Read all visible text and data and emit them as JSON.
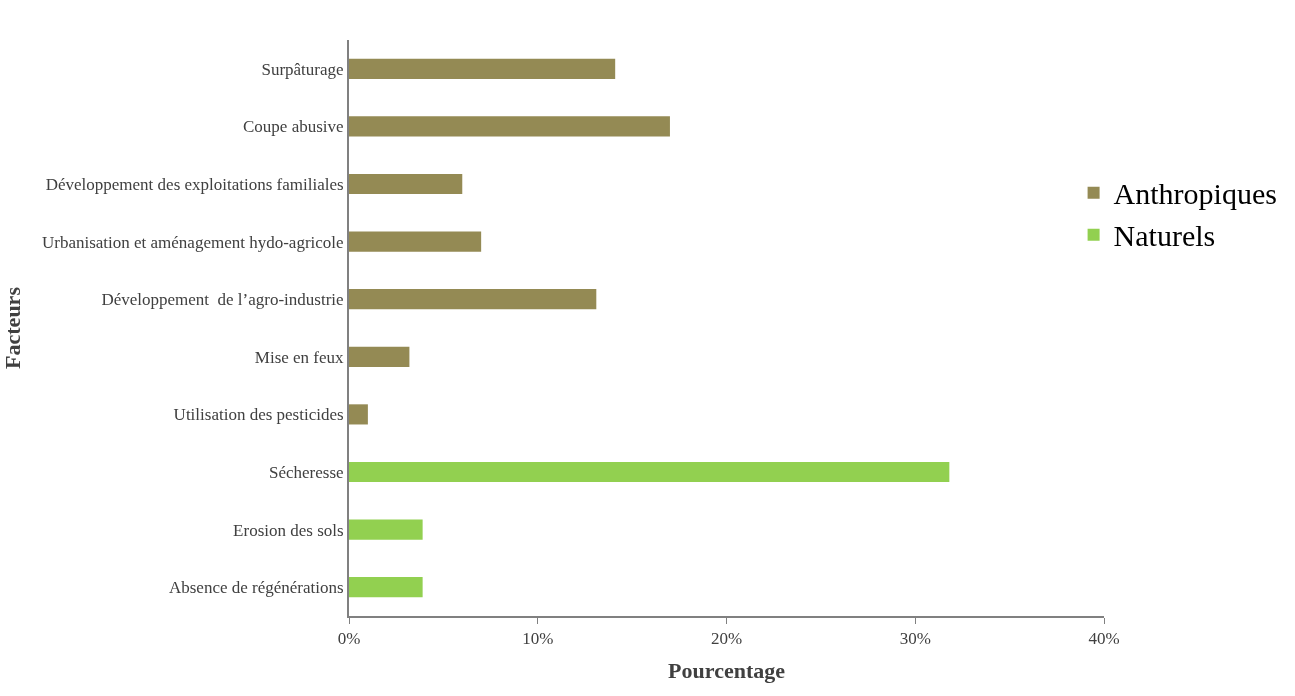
{
  "chart_data": {
    "type": "bar",
    "orientation": "horizontal",
    "xlabel": "Pourcentage",
    "ylabel": "Facteurs",
    "categories": [
      "Surpâturage",
      "Coupe abusive",
      "Développement des exploitations familiales",
      "Urbanisation et aménagement hydo-agricole",
      "Développement  de l’agro-industrie",
      "Mise en feux",
      "Utilisation des pesticides",
      "Sécheresse",
      "Erosion des sols",
      "Absence de régénérations"
    ],
    "series": [
      {
        "name": "Anthropiques",
        "color": "#948a54",
        "values": [
          14.1,
          17.0,
          6.0,
          7.0,
          13.1,
          3.2,
          1.0,
          null,
          null,
          null
        ]
      },
      {
        "name": "Naturels",
        "color": "#92d050",
        "values": [
          null,
          null,
          null,
          null,
          null,
          null,
          null,
          31.8,
          3.9,
          3.9
        ]
      }
    ],
    "xlim": [
      0,
      40
    ],
    "xticks": [
      {
        "value": 0,
        "label": "0%"
      },
      {
        "value": 10,
        "label": "10%"
      },
      {
        "value": 20,
        "label": "20%"
      },
      {
        "value": 30,
        "label": "30%"
      },
      {
        "value": 40,
        "label": "40%"
      }
    ],
    "legend": "right"
  }
}
